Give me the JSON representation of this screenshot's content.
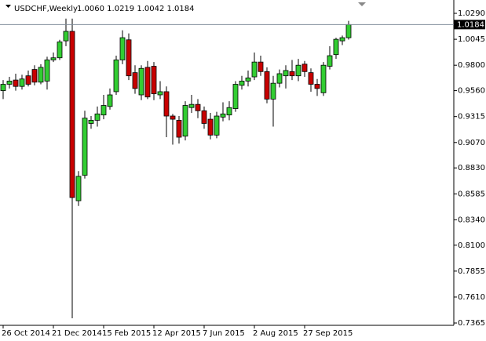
{
  "chart_data": {
    "type": "candlestick",
    "title": "USDCHF,Weekly",
    "header_info": "1.0060 1.0219 1.0042 1.0184",
    "categories": [
      "26 Oct 2014",
      null,
      null,
      null,
      null,
      null,
      null,
      null,
      "21 Dec 2014",
      null,
      null,
      null,
      null,
      null,
      null,
      null,
      "15 Feb 2015",
      null,
      null,
      null,
      null,
      null,
      null,
      null,
      "12 Apr 2015",
      null,
      null,
      null,
      null,
      null,
      null,
      null,
      "7 Jun 2015",
      null,
      null,
      null,
      null,
      null,
      null,
      null,
      "2 Aug 2015",
      null,
      null,
      null,
      null,
      null,
      null,
      null,
      "27 Sep 2015",
      null,
      null,
      null,
      null,
      null,
      null,
      null
    ],
    "open": [
      0.956,
      0.962,
      0.966,
      0.96,
      0.97,
      0.976,
      0.964,
      0.965,
      0.985,
      0.987,
      1.003,
      1.012,
      0.852,
      0.876,
      0.925,
      0.928,
      0.933,
      0.941,
      0.955,
      0.985,
      1.004,
      0.973,
      0.952,
      0.978,
      0.979,
      0.952,
      0.955,
      0.932,
      0.928,
      0.913,
      0.94,
      0.943,
      0.937,
      0.929,
      0.914,
      0.931,
      0.933,
      0.939,
      0.961,
      0.965,
      0.969,
      0.983,
      0.974,
      0.948,
      0.963,
      0.97,
      0.974,
      0.97,
      0.981,
      0.973,
      0.962,
      0.954,
      0.979,
      0.99,
      1.003,
      1.006
    ],
    "high": [
      0.966,
      0.969,
      0.972,
      0.971,
      0.975,
      0.98,
      0.981,
      0.988,
      0.992,
      1.004,
      1.024,
      1.024,
      0.88,
      0.937,
      0.932,
      0.941,
      0.952,
      0.958,
      0.989,
      1.013,
      1.01,
      0.98,
      0.98,
      0.984,
      0.983,
      0.965,
      0.96,
      0.934,
      0.932,
      0.946,
      0.952,
      0.948,
      0.941,
      0.935,
      0.936,
      0.945,
      0.946,
      0.965,
      0.97,
      0.975,
      0.992,
      0.989,
      0.978,
      0.97,
      0.976,
      0.98,
      0.985,
      0.986,
      0.984,
      0.977,
      0.967,
      0.983,
      0.998,
      1.006,
      1.008,
      1.0219
    ],
    "low": [
      0.948,
      0.958,
      0.956,
      0.957,
      0.96,
      0.961,
      0.962,
      0.957,
      0.983,
      0.985,
      0.998,
      0.741,
      0.847,
      0.873,
      0.92,
      0.922,
      0.929,
      0.938,
      0.952,
      0.981,
      0.966,
      0.953,
      0.947,
      0.948,
      0.947,
      0.948,
      0.912,
      0.905,
      0.906,
      0.909,
      0.935,
      0.93,
      0.92,
      0.91,
      0.911,
      0.927,
      0.928,
      0.936,
      0.957,
      0.96,
      0.966,
      0.97,
      0.944,
      0.922,
      0.959,
      0.958,
      0.966,
      0.965,
      0.969,
      0.955,
      0.951,
      0.951,
      0.976,
      0.986,
      0.999,
      1.0042
    ],
    "close": [
      0.962,
      0.965,
      0.96,
      0.967,
      0.962,
      0.964,
      0.978,
      0.985,
      0.987,
      1.002,
      1.012,
      0.855,
      0.875,
      0.93,
      0.928,
      0.934,
      0.942,
      0.952,
      0.985,
      1.006,
      0.97,
      0.958,
      0.977,
      0.95,
      0.953,
      0.955,
      0.932,
      0.929,
      0.912,
      0.942,
      0.943,
      0.937,
      0.925,
      0.914,
      0.932,
      0.934,
      0.94,
      0.962,
      0.965,
      0.968,
      0.983,
      0.974,
      0.948,
      0.963,
      0.972,
      0.975,
      0.97,
      0.98,
      0.974,
      0.962,
      0.958,
      0.98,
      0.989,
      1.0045,
      1.006,
      1.0184
    ],
    "up_color": "#32cd32",
    "down_color": "#c80000",
    "last_price": 1.0184,
    "ylim": [
      0.7343,
      1.0379
    ],
    "yticks": [
      {
        "value": 1.029,
        "label": "1.0290"
      },
      1.0045,
      {
        "value": 0.98,
        "label": "0.9800"
      },
      {
        "value": 0.956,
        "label": "0.9560"
      },
      0.9315,
      {
        "value": 0.907,
        "label": "0.9070"
      },
      {
        "value": 0.883,
        "label": "0.8830"
      },
      0.8585,
      {
        "value": 0.834,
        "label": "0.8340"
      },
      {
        "value": 0.81,
        "label": "0.8100"
      },
      0.7855,
      {
        "value": 0.761,
        "label": "0.7610"
      },
      0.7365
    ],
    "grid": false
  }
}
